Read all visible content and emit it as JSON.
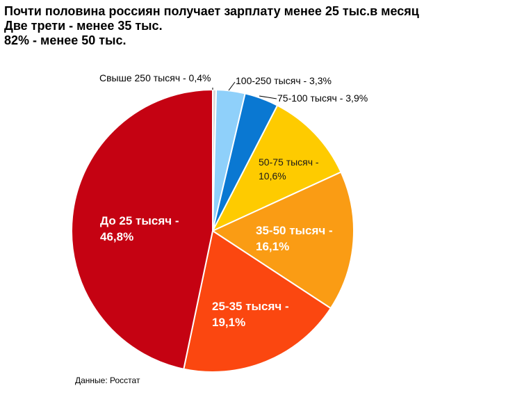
{
  "title_lines": [
    "Почти половина россиян получает зарплату менее 25 тыс.в месяц",
    "Две трети - менее 35 тыс.",
    "82% - менее 50 тыс."
  ],
  "source": "Данные: Росстат",
  "chart_data": {
    "type": "pie",
    "start": "12 o'clock, clockwise",
    "slices": [
      {
        "label_lines": [
          "Свыше 250 тысяч - 0,4%"
        ],
        "category": "Свыше 250 тысяч",
        "value": 0.4,
        "color": "#d8d8d8",
        "label_color": "#000000",
        "label_weight": "normal",
        "label_style": "outside"
      },
      {
        "label_lines": [
          "100-250 тысяч - 3,3%"
        ],
        "category": "100-250 тысяч",
        "value": 3.3,
        "color": "#8fd0fa",
        "label_color": "#000000",
        "label_weight": "normal",
        "label_style": "outside"
      },
      {
        "label_lines": [
          "75-100 тысяч - 3,9%"
        ],
        "category": "75-100 тысяч",
        "value": 3.9,
        "color": "#0a78d2",
        "label_color": "#000000",
        "label_weight": "normal",
        "label_style": "outside"
      },
      {
        "label_lines": [
          "50-75 тысяч -",
          "10,6%"
        ],
        "category": "50-75 тысяч",
        "value": 10.6,
        "color": "#fecb00",
        "label_color": "#1a1a1a",
        "label_weight": "normal",
        "label_style": "inside"
      },
      {
        "label_lines": [
          "35-50 тысяч -",
          "16,1%"
        ],
        "category": "35-50 тысяч",
        "value": 16.1,
        "color": "#fa9c14",
        "label_color": "#ffffff",
        "label_weight": "bold",
        "label_style": "inside"
      },
      {
        "label_lines": [
          "25-35 тысяч -",
          "19,1%"
        ],
        "category": "25-35 тысяч",
        "value": 19.1,
        "color": "#fb4710",
        "label_color": "#ffffff",
        "label_weight": "bold",
        "label_style": "inside"
      },
      {
        "label_lines": [
          "До 25 тысяч -",
          "46,8%"
        ],
        "category": "До 25 тысяч",
        "value": 46.8,
        "color": "#c50212",
        "label_color": "#ffffff",
        "label_weight": "bold",
        "label_style": "inside"
      }
    ]
  }
}
